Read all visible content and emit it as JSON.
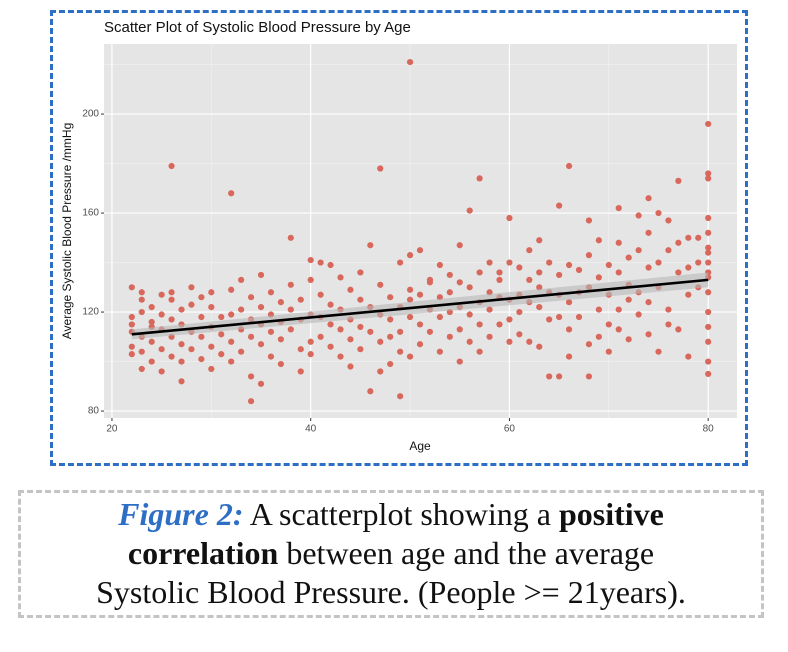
{
  "chart_data": {
    "type": "scatter",
    "title": "Scatter Plot of Systolic Blood Pressure by Age",
    "x_label": "Age",
    "y_label": "Average Systolic Blood Pressure /mmHg",
    "color": "#d9685c",
    "xlim": [
      19.2,
      82.9
    ],
    "ylim": [
      77.2,
      228.3
    ],
    "xticks": [
      20,
      40,
      60,
      80
    ],
    "yticks": [
      80,
      120,
      160,
      200
    ],
    "x_minor_ticks": [
      30,
      50,
      70
    ],
    "y_minor_ticks": [
      100,
      140,
      180,
      220
    ],
    "grid": true,
    "x": [
      22,
      22,
      22,
      22,
      22,
      22,
      23,
      23,
      23,
      23,
      23,
      23,
      24,
      24,
      24,
      24,
      24,
      25,
      25,
      25,
      25,
      25,
      26,
      26,
      26,
      26,
      26,
      26,
      27,
      27,
      27,
      27,
      27,
      28,
      28,
      28,
      28,
      29,
      29,
      29,
      29,
      30,
      30,
      30,
      30,
      30,
      31,
      31,
      31,
      32,
      32,
      32,
      32,
      32,
      33,
      33,
      33,
      33,
      34,
      34,
      34,
      34,
      34,
      35,
      35,
      35,
      35,
      35,
      36,
      36,
      36,
      36,
      37,
      37,
      37,
      37,
      38,
      38,
      38,
      38,
      39,
      39,
      39,
      39,
      40,
      40,
      40,
      40,
      40,
      41,
      41,
      41,
      41,
      42,
      42,
      42,
      42,
      43,
      43,
      43,
      43,
      44,
      44,
      44,
      44,
      45,
      45,
      45,
      45,
      46,
      46,
      46,
      46,
      47,
      47,
      47,
      47,
      47,
      48,
      48,
      48,
      48,
      49,
      49,
      49,
      49,
      49,
      50,
      50,
      50,
      50,
      50,
      50,
      51,
      51,
      51,
      51,
      52,
      52,
      52,
      52,
      53,
      53,
      53,
      53,
      54,
      54,
      54,
      54,
      55,
      55,
      55,
      55,
      55,
      56,
      56,
      56,
      56,
      57,
      57,
      57,
      57,
      57,
      58,
      58,
      58,
      58,
      59,
      59,
      59,
      59,
      60,
      60,
      60,
      60,
      60,
      61,
      61,
      61,
      61,
      62,
      62,
      62,
      62,
      63,
      63,
      63,
      63,
      63,
      64,
      64,
      64,
      64,
      65,
      65,
      65,
      65,
      65,
      66,
      66,
      66,
      66,
      66,
      67,
      67,
      67,
      68,
      68,
      68,
      68,
      68,
      69,
      69,
      69,
      69,
      70,
      70,
      70,
      70,
      71,
      71,
      71,
      71,
      71,
      72,
      72,
      72,
      72,
      73,
      73,
      73,
      73,
      74,
      74,
      74,
      74,
      74,
      75,
      75,
      75,
      75,
      76,
      76,
      76,
      76,
      77,
      77,
      77,
      77,
      78,
      78,
      78,
      78,
      79,
      79,
      79,
      80,
      80,
      80,
      80,
      80,
      80,
      80,
      80,
      80,
      80,
      80,
      80,
      80,
      80,
      80,
      80
    ],
    "values": [
      130,
      118,
      112,
      106,
      103,
      115,
      128,
      120,
      110,
      104,
      97,
      125,
      122,
      116,
      108,
      100,
      114,
      119,
      113,
      105,
      96,
      127,
      179,
      125,
      117,
      110,
      102,
      128,
      121,
      115,
      107,
      92,
      100,
      130,
      112,
      105,
      123,
      126,
      118,
      110,
      101,
      122,
      114,
      106,
      97,
      128,
      118,
      111,
      103,
      168,
      129,
      119,
      108,
      100,
      133,
      121,
      113,
      104,
      84,
      117,
      110,
      94,
      126,
      135,
      122,
      115,
      107,
      91,
      128,
      119,
      112,
      102,
      124,
      116,
      109,
      99,
      150,
      131,
      121,
      113,
      125,
      117,
      105,
      96,
      141,
      133,
      119,
      108,
      103,
      140,
      127,
      118,
      110,
      123,
      115,
      106,
      139,
      134,
      121,
      113,
      102,
      129,
      117,
      109,
      98,
      136,
      125,
      114,
      105,
      147,
      122,
      112,
      88,
      178,
      131,
      119,
      108,
      96,
      126,
      117,
      110,
      99,
      140,
      122,
      104,
      86,
      112,
      221,
      143,
      129,
      118,
      102,
      125,
      145,
      127,
      115,
      107,
      133,
      121,
      112,
      132,
      139,
      126,
      118,
      104,
      128,
      120,
      110,
      135,
      147,
      132,
      122,
      113,
      100,
      161,
      130,
      119,
      108,
      174,
      136,
      124,
      115,
      104,
      140,
      128,
      121,
      110,
      133,
      126,
      115,
      136,
      158,
      140,
      125,
      117,
      108,
      138,
      127,
      120,
      111,
      145,
      133,
      124,
      108,
      149,
      136,
      122,
      106,
      130,
      140,
      128,
      117,
      94,
      163,
      135,
      127,
      118,
      94,
      179,
      139,
      124,
      102,
      113,
      137,
      128,
      118,
      157,
      143,
      130,
      107,
      94,
      149,
      134,
      121,
      110,
      139,
      127,
      115,
      104,
      162,
      148,
      136,
      121,
      113,
      142,
      131,
      109,
      125,
      159,
      145,
      128,
      119,
      166,
      152,
      138,
      124,
      111,
      160,
      140,
      130,
      104,
      157,
      145,
      121,
      115,
      173,
      148,
      136,
      113,
      150,
      138,
      127,
      102,
      150,
      140,
      130,
      196,
      176,
      158,
      152,
      146,
      140,
      134,
      128,
      120,
      114,
      108,
      100,
      95,
      136,
      144,
      174
    ],
    "trend": {
      "x": [
        22,
        80
      ],
      "y": [
        111,
        133
      ],
      "lower": [
        109,
        130
      ],
      "upper": [
        113,
        136
      ],
      "color": "#000000",
      "band_color": "#b8b8b8"
    }
  },
  "caption": {
    "label": "Figure 2:",
    "parts": [
      "A scatterplot showing a",
      "positive",
      "correlation",
      "between age and the average",
      "Systolic Blood Pressure. (People >= 21years)."
    ]
  }
}
